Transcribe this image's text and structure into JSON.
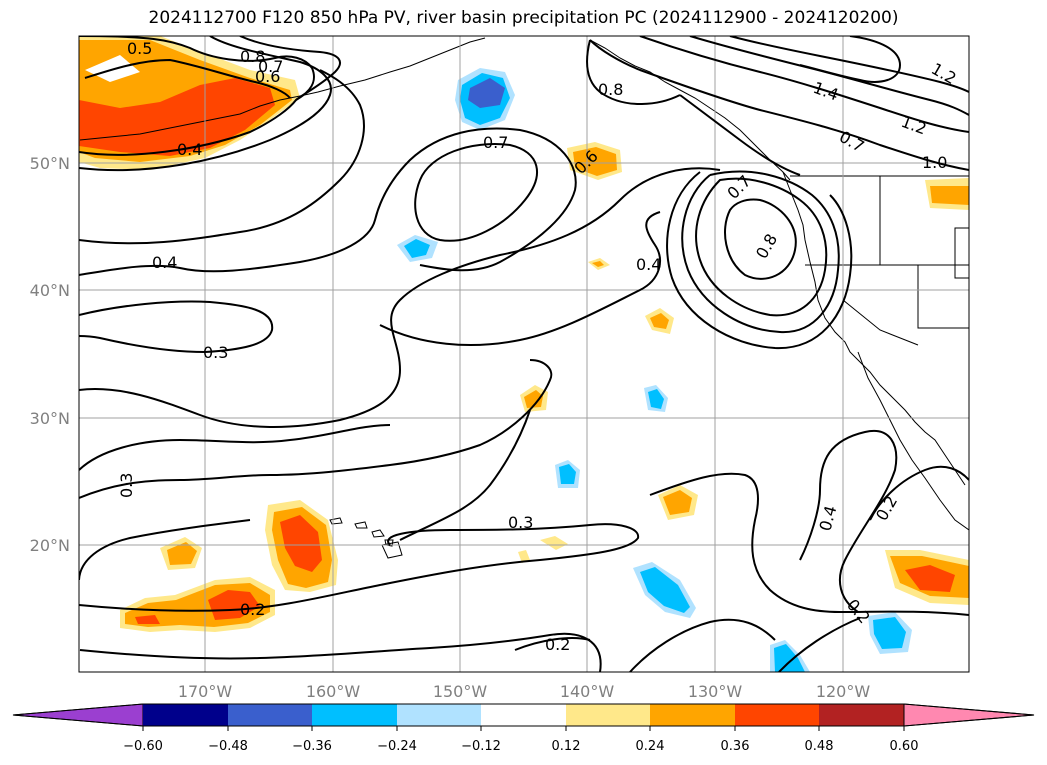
{
  "title": "2024112700 F120 850 hPa PV, river basin precipitation PC (2024112900 - 2024120200)",
  "map": {
    "lon_labels": [
      "170°W",
      "160°W",
      "150°W",
      "140°W",
      "130°W",
      "120°W"
    ],
    "lat_labels": [
      "50°N",
      "40°N",
      "30°N",
      "20°N"
    ],
    "contour_labels": [
      "0.5",
      "0.8",
      "0.7",
      "0.6",
      "0.4",
      "0.4",
      "0.3",
      "0.3",
      "0.7",
      "0.8",
      "0.6",
      "0.4",
      "0.3",
      "0.2",
      "0.2",
      "1.4",
      "1.2",
      "1.2",
      "1.0",
      "0.7",
      "0.8",
      "0.7",
      "0.4",
      "0.2",
      "0.2"
    ]
  },
  "colorbar": {
    "tick_labels": [
      "−0.60",
      "−0.48",
      "−0.36",
      "−0.24",
      "−0.12",
      "0.12",
      "0.24",
      "0.36",
      "0.48",
      "0.60"
    ],
    "colors": [
      "#9b3fd0",
      "#00008b",
      "#3a5fcd",
      "#00bfff",
      "#b0e2ff",
      "#ffffff",
      "#ffe88a",
      "#ffa500",
      "#ff4500",
      "#b22222",
      "#ff88b0",
      "#ff88b0"
    ]
  }
}
